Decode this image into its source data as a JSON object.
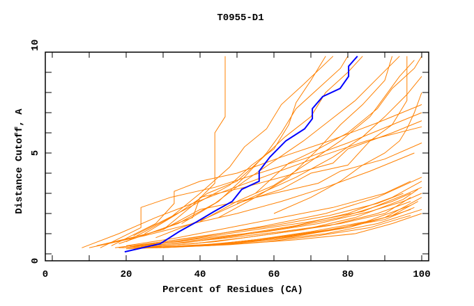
{
  "chart_data": {
    "type": "line",
    "title": "T0955-D1",
    "xlabel": "Percent of Residues (CA)",
    "ylabel": "Distance Cutoff, A",
    "xlim": [
      0,
      100
    ],
    "ylim": [
      0,
      10
    ],
    "x_tick_labels": [
      "0",
      "20",
      "40",
      "60",
      "80",
      "100"
    ],
    "y_tick_labels": [
      "0",
      "5",
      "10"
    ],
    "grid": false,
    "colors": {
      "highlight": "#0000ff",
      "others": "#ff8000"
    },
    "highlight_series": {
      "points": [
        [
          19.6,
          0.1
        ],
        [
          29.2,
          0.5
        ],
        [
          34.3,
          1.1
        ],
        [
          39.2,
          1.6
        ],
        [
          43.8,
          2.1
        ],
        [
          48.7,
          2.6
        ],
        [
          51.3,
          3.2
        ],
        [
          56.0,
          3.6
        ],
        [
          56.0,
          4.1
        ],
        [
          58.9,
          4.8
        ],
        [
          63.2,
          5.6
        ],
        [
          68.3,
          6.2
        ],
        [
          70.4,
          6.7
        ],
        [
          70.4,
          7.2
        ],
        [
          73.2,
          7.8
        ],
        [
          77.9,
          8.2
        ],
        [
          80.2,
          8.8
        ],
        [
          80.2,
          9.3
        ],
        [
          82.6,
          9.8
        ]
      ]
    },
    "series": [
      {
        "points": [
          [
            18,
            0.3
          ],
          [
            30,
            0.35
          ],
          [
            45,
            0.5
          ],
          [
            60,
            0.8
          ],
          [
            75,
            1.2
          ],
          [
            90,
            1.7
          ],
          [
            98,
            2.3
          ]
        ]
      },
      {
        "points": [
          [
            20,
            0.25
          ],
          [
            35,
            0.35
          ],
          [
            50,
            0.6
          ],
          [
            65,
            0.9
          ],
          [
            80,
            1.3
          ],
          [
            92,
            1.9
          ],
          [
            99,
            2.6
          ]
        ]
      },
      {
        "points": [
          [
            22,
            0.3
          ],
          [
            40,
            0.4
          ],
          [
            55,
            0.7
          ],
          [
            70,
            1.1
          ],
          [
            85,
            1.6
          ],
          [
            97,
            2.4
          ]
        ]
      },
      {
        "points": [
          [
            24,
            0.35
          ],
          [
            38,
            0.5
          ],
          [
            52,
            0.8
          ],
          [
            68,
            1.2
          ],
          [
            82,
            1.8
          ],
          [
            95,
            2.7
          ],
          [
            99,
            3.2
          ]
        ]
      },
      {
        "points": [
          [
            19,
            0.3
          ],
          [
            32,
            0.5
          ],
          [
            48,
            0.8
          ],
          [
            62,
            1.1
          ],
          [
            78,
            1.5
          ],
          [
            90,
            2.0
          ],
          [
            97,
            2.8
          ]
        ]
      },
      {
        "points": [
          [
            26,
            0.3
          ],
          [
            42,
            0.4
          ],
          [
            58,
            0.6
          ],
          [
            72,
            0.9
          ],
          [
            86,
            1.3
          ],
          [
            95,
            1.8
          ],
          [
            97,
            1.9
          ]
        ]
      },
      {
        "points": [
          [
            21,
            0.35
          ],
          [
            36,
            0.55
          ],
          [
            50,
            0.9
          ],
          [
            64,
            1.3
          ],
          [
            78,
            1.8
          ],
          [
            92,
            2.6
          ],
          [
            97,
            3.0
          ]
        ]
      },
      {
        "points": [
          [
            28,
            0.3
          ],
          [
            45,
            0.45
          ],
          [
            60,
            0.7
          ],
          [
            74,
            1.0
          ],
          [
            88,
            1.5
          ],
          [
            100,
            2.2
          ]
        ]
      },
      {
        "points": [
          [
            23,
            0.4
          ],
          [
            37,
            0.7
          ],
          [
            52,
            1.0
          ],
          [
            66,
            1.4
          ],
          [
            80,
            2.0
          ],
          [
            92,
            2.8
          ],
          [
            100,
            3.6
          ]
        ]
      },
      {
        "points": [
          [
            30,
            0.3
          ],
          [
            47,
            0.5
          ],
          [
            62,
            0.8
          ],
          [
            76,
            1.2
          ],
          [
            90,
            1.8
          ],
          [
            100,
            2.8
          ]
        ]
      },
      {
        "points": [
          [
            25,
            0.4
          ],
          [
            40,
            0.8
          ],
          [
            55,
            1.2
          ],
          [
            70,
            1.6
          ],
          [
            84,
            2.1
          ],
          [
            95,
            2.9
          ],
          [
            100,
            3.3
          ]
        ]
      },
      {
        "points": [
          [
            32,
            0.35
          ],
          [
            50,
            0.55
          ],
          [
            65,
            0.85
          ],
          [
            80,
            1.3
          ],
          [
            92,
            1.9
          ],
          [
            97,
            2.2
          ]
        ]
      },
      {
        "points": [
          [
            17,
            0.3
          ],
          [
            30,
            0.6
          ],
          [
            45,
            1.0
          ],
          [
            60,
            1.4
          ],
          [
            75,
            1.9
          ],
          [
            88,
            2.5
          ],
          [
            95,
            3.0
          ]
        ]
      },
      {
        "points": [
          [
            22,
            0.4
          ],
          [
            40,
            0.7
          ],
          [
            58,
            1.1
          ],
          [
            72,
            1.5
          ],
          [
            86,
            2.1
          ],
          [
            95,
            2.6
          ],
          [
            100,
            3.0
          ]
        ]
      },
      {
        "points": [
          [
            27,
            0.35
          ],
          [
            44,
            0.6
          ],
          [
            60,
            1.0
          ],
          [
            75,
            1.4
          ],
          [
            88,
            2.0
          ],
          [
            97,
            2.6
          ]
        ]
      },
      {
        "points": [
          [
            20,
            0.4
          ],
          [
            34,
            0.8
          ],
          [
            48,
            1.3
          ],
          [
            62,
            1.8
          ],
          [
            76,
            2.3
          ],
          [
            90,
            3.0
          ],
          [
            97,
            3.6
          ]
        ]
      },
      {
        "points": [
          [
            24,
            0.45
          ],
          [
            42,
            0.9
          ],
          [
            58,
            1.4
          ],
          [
            74,
            2.0
          ],
          [
            88,
            2.8
          ],
          [
            100,
            3.8
          ]
        ]
      },
      {
        "points": [
          [
            29,
            0.3
          ],
          [
            48,
            0.45
          ],
          [
            66,
            0.7
          ],
          [
            82,
            1.0
          ],
          [
            92,
            1.5
          ],
          [
            100,
            2.0
          ]
        ]
      },
      {
        "points": [
          [
            8,
            0.3
          ],
          [
            18,
            1.0
          ],
          [
            28,
            1.8
          ],
          [
            38,
            2.5
          ],
          [
            48,
            3.2
          ],
          [
            60,
            4.0
          ],
          [
            72,
            4.8
          ],
          [
            85,
            5.6
          ],
          [
            100,
            6.3
          ]
        ]
      },
      {
        "points": [
          [
            13,
            0.3
          ],
          [
            24,
            1.3
          ],
          [
            24,
            2.3
          ],
          [
            32,
            2.8
          ],
          [
            44,
            3.3
          ],
          [
            56,
            4.0
          ],
          [
            68,
            4.7
          ],
          [
            80,
            5.5
          ],
          [
            92,
            6.4
          ],
          [
            100,
            7.0
          ]
        ]
      },
      {
        "points": [
          [
            16,
            0.4
          ],
          [
            28,
            1.5
          ],
          [
            33,
            2.5
          ],
          [
            33,
            3.1
          ],
          [
            40,
            3.6
          ],
          [
            50,
            4.0
          ],
          [
            62,
            4.8
          ],
          [
            75,
            5.6
          ],
          [
            88,
            6.5
          ],
          [
            100,
            7.4
          ]
        ]
      },
      {
        "points": [
          [
            10,
            0.3
          ],
          [
            25,
            0.9
          ],
          [
            38,
            1.5
          ],
          [
            50,
            2.0
          ],
          [
            62,
            2.6
          ],
          [
            74,
            3.3
          ],
          [
            86,
            4.1
          ],
          [
            98,
            5.0
          ]
        ]
      },
      {
        "points": [
          [
            15,
            0.5
          ],
          [
            30,
            1.2
          ],
          [
            40,
            2.2
          ],
          [
            48,
            2.5
          ],
          [
            60,
            3.0
          ],
          [
            72,
            3.5
          ],
          [
            78,
            4.1
          ],
          [
            90,
            4.7
          ],
          [
            100,
            5.5
          ]
        ]
      },
      {
        "points": [
          [
            12,
            0.4
          ],
          [
            26,
            1.0
          ],
          [
            38,
            1.8
          ],
          [
            40,
            2.8
          ],
          [
            52,
            3.3
          ],
          [
            64,
            3.9
          ],
          [
            76,
            4.5
          ],
          [
            80,
            5.2
          ],
          [
            92,
            6.0
          ],
          [
            100,
            6.6
          ]
        ]
      },
      {
        "points": [
          [
            18,
            0.5
          ],
          [
            34,
            1.5
          ],
          [
            44,
            2.5
          ],
          [
            52,
            3.6
          ],
          [
            60,
            4.6
          ],
          [
            68,
            5.6
          ],
          [
            75,
            6.6
          ],
          [
            82,
            7.6
          ],
          [
            88,
            8.7
          ],
          [
            94,
            9.8
          ]
        ]
      },
      {
        "points": [
          [
            20,
            0.6
          ],
          [
            32,
            1.8
          ],
          [
            40,
            3.0
          ],
          [
            48,
            4.3
          ],
          [
            52,
            5.3
          ],
          [
            58,
            6.2
          ],
          [
            62,
            7.4
          ],
          [
            68,
            8.4
          ],
          [
            76,
            9.8
          ]
        ]
      },
      {
        "points": [
          [
            25,
            1.0
          ],
          [
            34,
            2.0
          ],
          [
            42,
            3.0
          ],
          [
            50,
            3.6
          ],
          [
            56,
            4.6
          ],
          [
            63,
            5.8
          ],
          [
            70,
            6.8
          ],
          [
            74,
            8.0
          ],
          [
            80,
            9.0
          ],
          [
            84,
            9.8
          ]
        ]
      },
      {
        "points": [
          [
            30,
            1.2
          ],
          [
            38,
            2.4
          ],
          [
            44,
            3.5
          ],
          [
            44,
            6.0
          ],
          [
            46.8,
            6.8
          ],
          [
            46.8,
            9.8
          ]
        ]
      },
      {
        "points": [
          [
            22,
            0.9
          ],
          [
            36,
            2.2
          ],
          [
            48,
            3.4
          ],
          [
            54,
            4.4
          ],
          [
            60,
            5.2
          ],
          [
            64,
            6.4
          ],
          [
            66,
            7.5
          ],
          [
            70,
            8.6
          ],
          [
            74,
            9.8
          ]
        ]
      },
      {
        "points": [
          [
            28,
            0.8
          ],
          [
            42,
            1.8
          ],
          [
            54,
            2.8
          ],
          [
            66,
            3.8
          ],
          [
            76,
            4.8
          ],
          [
            84,
            5.8
          ],
          [
            90,
            6.8
          ],
          [
            96,
            7.9
          ],
          [
            100,
            8.8
          ]
        ]
      },
      {
        "points": [
          [
            35,
            1.5
          ],
          [
            45,
            2.6
          ],
          [
            52,
            3.8
          ],
          [
            58,
            5.0
          ],
          [
            62,
            6.0
          ],
          [
            66,
            7.2
          ],
          [
            72,
            8.2
          ],
          [
            78,
            9.2
          ],
          [
            80,
            9.8
          ]
        ]
      },
      {
        "points": [
          [
            40,
            1.6
          ],
          [
            50,
            2.6
          ],
          [
            60,
            3.4
          ],
          [
            70,
            4.6
          ],
          [
            78,
            5.6
          ],
          [
            86,
            6.8
          ],
          [
            90,
            7.8
          ],
          [
            94,
            8.8
          ],
          [
            98,
            9.6
          ]
        ]
      },
      {
        "points": [
          [
            45,
            1.8
          ],
          [
            55,
            2.8
          ],
          [
            64,
            3.8
          ],
          [
            72,
            5.2
          ],
          [
            78,
            6.4
          ],
          [
            84,
            7.4
          ],
          [
            90,
            8.6
          ],
          [
            92,
            9.8
          ]
        ]
      },
      {
        "points": [
          [
            50,
            2.5
          ],
          [
            62,
            3.2
          ],
          [
            70,
            4.0
          ],
          [
            80,
            4.4
          ],
          [
            86,
            5.6
          ],
          [
            92,
            6.4
          ],
          [
            96,
            7.6
          ],
          [
            96,
            9.8
          ]
        ]
      },
      {
        "points": [
          [
            55,
            3.0
          ],
          [
            64,
            4.5
          ],
          [
            72,
            5.2
          ],
          [
            80,
            6.0
          ],
          [
            88,
            7.2
          ],
          [
            92,
            8.2
          ],
          [
            98,
            9.2
          ],
          [
            100,
            9.8
          ]
        ]
      },
      {
        "points": [
          [
            60,
            2.0
          ],
          [
            70,
            2.8
          ],
          [
            78,
            3.6
          ],
          [
            84,
            4.4
          ],
          [
            90,
            5.0
          ],
          [
            94,
            5.6
          ],
          [
            96,
            6.2
          ],
          [
            98,
            7.0
          ],
          [
            100,
            8.0
          ]
        ]
      }
    ]
  }
}
